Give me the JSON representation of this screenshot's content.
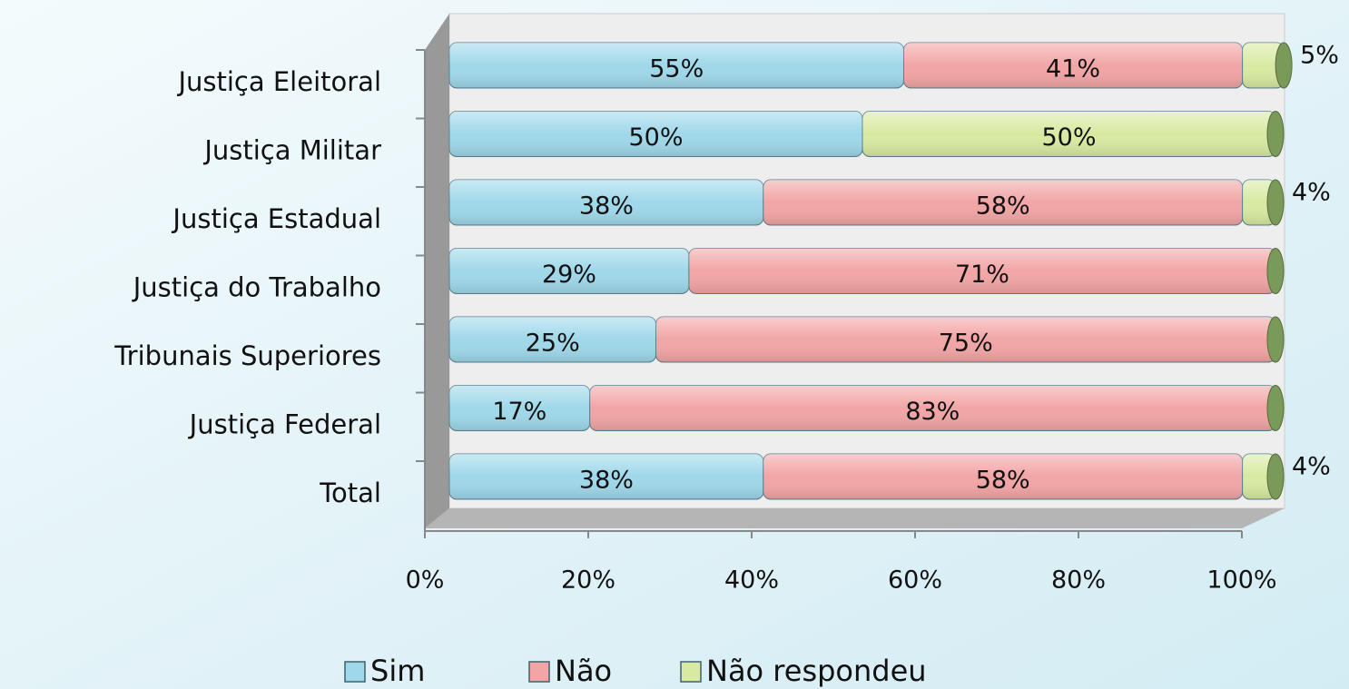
{
  "chart_data": {
    "type": "bar",
    "orientation": "horizontal",
    "stacked": true,
    "categories": [
      "Justiça Eleitoral",
      "Justiça Militar",
      "Justiça Estadual",
      "Justiça do Trabalho",
      "Tribunais Superiores",
      "Justiça Federal",
      "Total"
    ],
    "series": [
      {
        "name": "Sim",
        "color": "#9fd8ea",
        "values": [
          55,
          50,
          38,
          29,
          25,
          17,
          38
        ],
        "value_labels": [
          "55%",
          "50%",
          "38%",
          "29%",
          "25%",
          "17%",
          "38%"
        ]
      },
      {
        "name": "Não",
        "color": "#f2a5a5",
        "values": [
          41,
          null,
          58,
          71,
          75,
          83,
          58
        ],
        "value_labels": [
          "41%",
          null,
          "58%",
          "71%",
          "75%",
          "83%",
          "58%"
        ]
      },
      {
        "name": "Não respondeu",
        "color": "#d8eaa2",
        "values": [
          5,
          50,
          4,
          null,
          null,
          null,
          4
        ],
        "value_labels": [
          "5%",
          "50%",
          "4%",
          null,
          null,
          null,
          "4%"
        ]
      }
    ],
    "xlim": [
      0,
      100
    ],
    "xticks": [
      {
        "value": 0,
        "label": "0%"
      },
      {
        "value": 20,
        "label": "20%"
      },
      {
        "value": 40,
        "label": "40%"
      },
      {
        "value": 60,
        "label": "60%"
      },
      {
        "value": 80,
        "label": "80%"
      },
      {
        "value": 100,
        "label": "100%"
      }
    ],
    "legend": "bottom"
  }
}
